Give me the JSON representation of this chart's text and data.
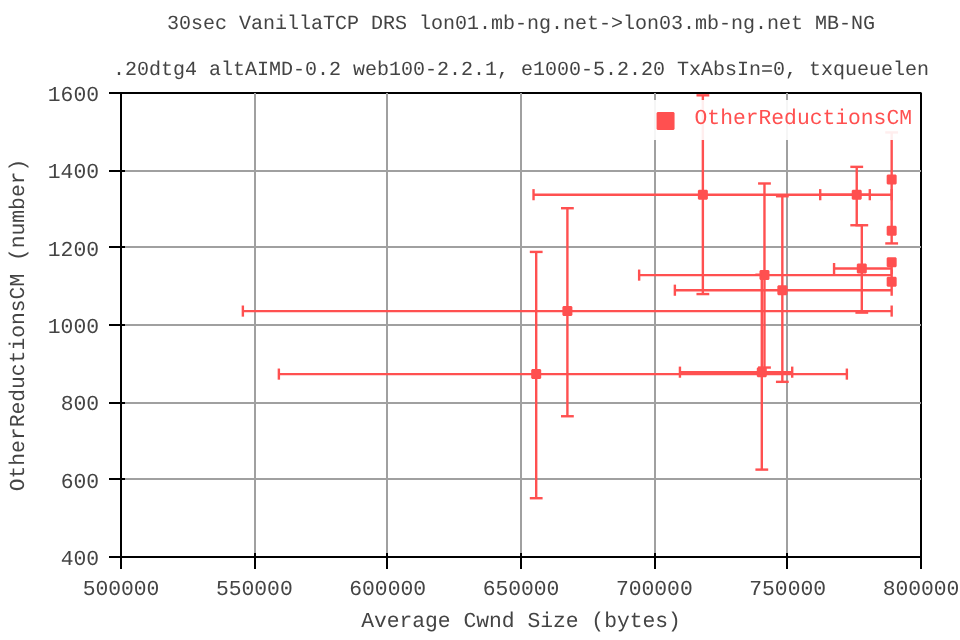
{
  "chart_data": {
    "type": "scatter",
    "title": "30sec VanillaTCP DRS lon01.mb-ng.net->lon03.mb-ng.net MB-NG",
    "subtitle": ".20dtg4 altAIMD-0.2 web100-2.2.1, e1000-5.2.20 TxAbsIn=0, txqueuelen",
    "xlabel": "Average Cwnd Size (bytes)",
    "ylabel": "OtherReductionsCM (number)",
    "xlim": [
      500000,
      800000
    ],
    "xticks": [
      500000,
      550000,
      600000,
      650000,
      700000,
      750000,
      800000
    ],
    "ylim": [
      400,
      1600
    ],
    "yticks": [
      400,
      600,
      800,
      1000,
      1200,
      1400,
      1600
    ],
    "grid": true,
    "legend": "top right",
    "marker": "square",
    "series": [
      {
        "name": "OtherReductionsCM",
        "color": "#ff5050",
        "x": [
          655700,
          667400,
          718200,
          775900,
          741300,
          748000,
          740300,
          777800,
          789000,
          789000,
          789000,
          789000
        ],
        "values": [
          873,
          1036,
          1337,
          1337,
          1129,
          1090,
          878,
          1146,
          1376,
          1244,
          1162,
          1112
        ],
        "errors": [
          [
            552,
            1189
          ],
          [
            764,
            1302
          ],
          [
            1080,
            1594
          ],
          [
            1258,
            1409
          ],
          [
            890,
            1366
          ],
          [
            853,
            1333
          ],
          [
            626,
            1130
          ],
          [
            1032,
            1258
          ],
          [
            1211,
            1498
          ],
          null,
          null,
          null
        ],
        "xerrors": [
          [
            559200,
            772200
          ],
          [
            545700,
            789000
          ],
          [
            654700,
            789000
          ],
          [
            762200,
            780800
          ],
          [
            694300,
            789000
          ],
          [
            707700,
            789000
          ],
          [
            709600,
            751700
          ],
          [
            767400,
            789000
          ],
          null,
          null,
          null,
          null
        ]
      }
    ]
  }
}
